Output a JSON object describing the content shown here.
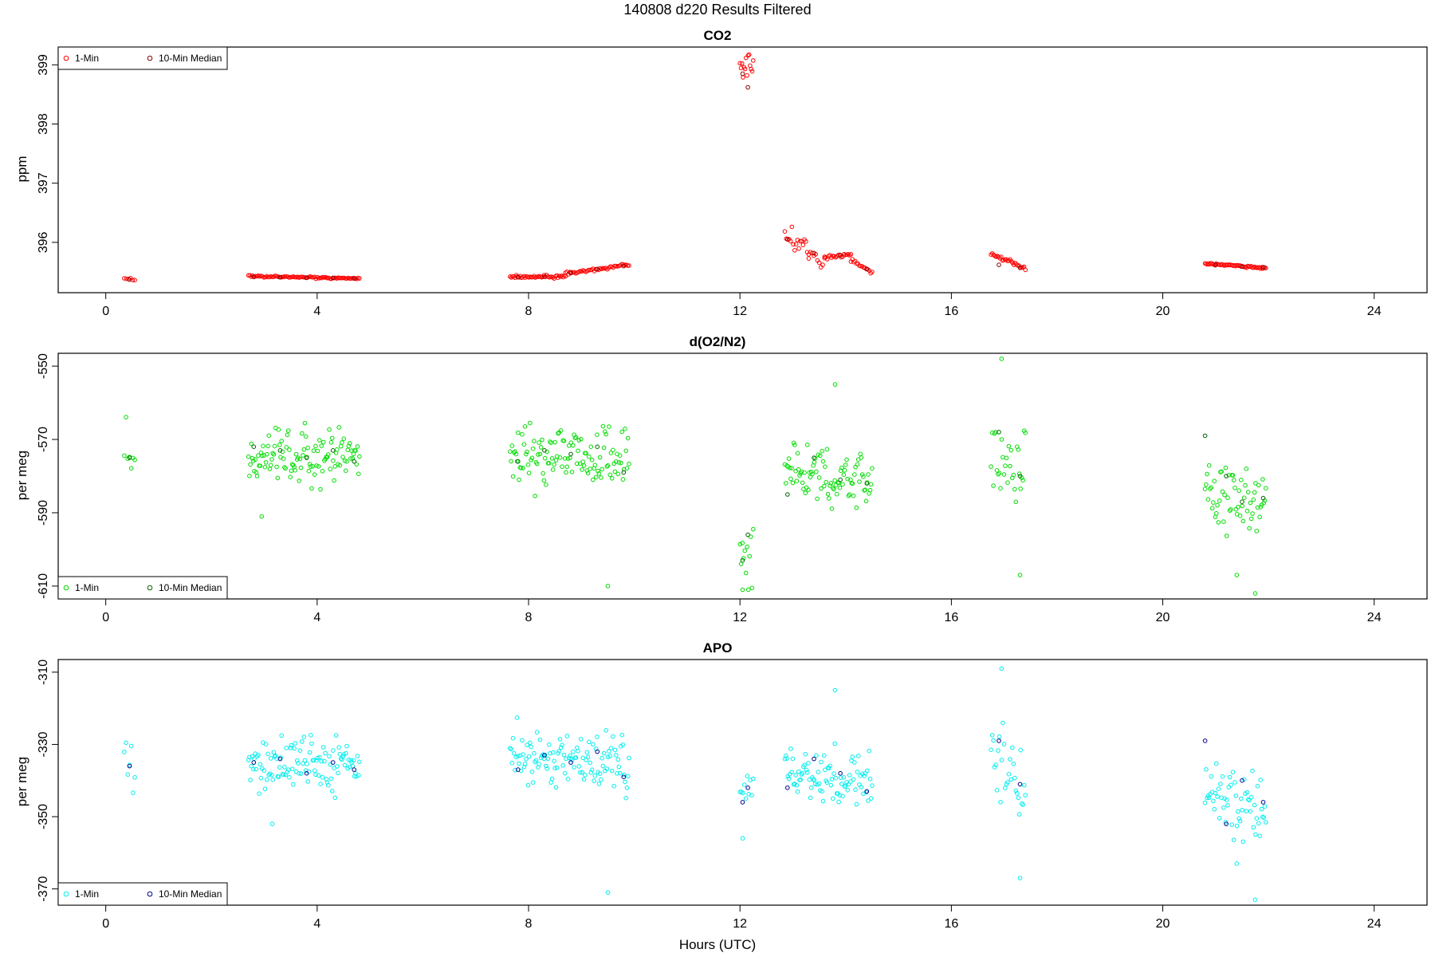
{
  "figure": {
    "title": "140808   d220   Results Filtered",
    "xlabel": "Hours (UTC)"
  },
  "chart_data": [
    {
      "type": "scatter",
      "title": "CO2",
      "xlabel": "",
      "ylabel": "ppm",
      "xlim": [
        -0.9,
        25.0
      ],
      "ylim": [
        395.15,
        399.3
      ],
      "xticks": [
        0,
        4,
        8,
        12,
        16,
        20,
        24
      ],
      "yticks": [
        396,
        397,
        398,
        399
      ],
      "legend_position": "top-left",
      "series": [
        {
          "name": "1-Min",
          "color": "#ff0000",
          "segments": [
            {
              "t0": 0.35,
              "t1": 0.55,
              "y0": 395.39,
              "y1": 395.36,
              "n": 6,
              "jitter": 0.03
            },
            {
              "t0": 2.7,
              "t1": 4.8,
              "y0": 395.43,
              "y1": 395.39,
              "n": 80,
              "jitter": 0.015
            },
            {
              "t0": 7.65,
              "t1": 8.7,
              "y0": 395.42,
              "y1": 395.42,
              "n": 45,
              "jitter": 0.025
            },
            {
              "t0": 8.7,
              "t1": 9.9,
              "y0": 395.47,
              "y1": 395.62,
              "n": 45,
              "jitter": 0.025
            },
            {
              "t0": 12.0,
              "t1": 12.25,
              "y0": 398.8,
              "y1": 399.0,
              "n": 14,
              "jitter": 0.2
            },
            {
              "t0": 12.85,
              "t1": 13.3,
              "y0": 396.1,
              "y1": 395.9,
              "n": 18,
              "jitter": 0.18
            },
            {
              "t0": 13.3,
              "t1": 13.6,
              "y0": 395.8,
              "y1": 395.65,
              "n": 10,
              "jitter": 0.1
            },
            {
              "t0": 13.6,
              "t1": 14.1,
              "y0": 395.75,
              "y1": 395.8,
              "n": 20,
              "jitter": 0.04
            },
            {
              "t0": 14.1,
              "t1": 14.5,
              "y0": 395.7,
              "y1": 395.5,
              "n": 16,
              "jitter": 0.03
            },
            {
              "t0": 16.75,
              "t1": 17.4,
              "y0": 395.8,
              "y1": 395.56,
              "n": 28,
              "jitter": 0.03
            },
            {
              "t0": 20.8,
              "t1": 21.95,
              "y0": 395.64,
              "y1": 395.57,
              "n": 55,
              "jitter": 0.015
            }
          ]
        },
        {
          "name": "10-Min Median",
          "color": "#8b0000",
          "points": [
            [
              0.45,
              395.37
            ],
            [
              2.8,
              395.42
            ],
            [
              3.3,
              395.41
            ],
            [
              3.8,
              395.4
            ],
            [
              4.3,
              395.4
            ],
            [
              4.7,
              395.39
            ],
            [
              7.8,
              395.41
            ],
            [
              8.3,
              395.42
            ],
            [
              8.8,
              395.48
            ],
            [
              9.3,
              395.55
            ],
            [
              9.8,
              395.6
            ],
            [
              12.05,
              398.85
            ],
            [
              12.15,
              398.62
            ],
            [
              12.9,
              396.05
            ],
            [
              13.4,
              395.82
            ],
            [
              13.9,
              395.78
            ],
            [
              14.4,
              395.55
            ],
            [
              16.9,
              395.62
            ],
            [
              17.3,
              395.57
            ],
            [
              21.0,
              395.62
            ],
            [
              21.5,
              395.59
            ],
            [
              21.9,
              395.58
            ]
          ]
        }
      ]
    },
    {
      "type": "scatter",
      "title": "d(O2/N2)",
      "xlabel": "",
      "ylabel": "per meg",
      "xlim": [
        -0.9,
        25.0
      ],
      "ylim": [
        -613.5,
        -546.5
      ],
      "xticks": [
        0,
        4,
        8,
        12,
        16,
        20,
        24
      ],
      "yticks": [
        -550,
        -570,
        -590,
        -610
      ],
      "legend_position": "bottom-left",
      "series": [
        {
          "name": "1-Min",
          "color": "#00dd00",
          "segments": [
            {
              "t0": 0.35,
              "t1": 0.55,
              "y0": -573,
              "y1": -575,
              "n": 7,
              "jitter": 9
            },
            {
              "t0": 2.7,
              "t1": 4.8,
              "y0": -574,
              "y1": -575,
              "n": 115,
              "jitter": 7
            },
            {
              "t0": 7.65,
              "t1": 9.9,
              "y0": -574,
              "y1": -575,
              "n": 120,
              "jitter": 8
            },
            {
              "t0": 12.0,
              "t1": 12.25,
              "y0": -598,
              "y1": -602,
              "n": 12,
              "jitter": 9
            },
            {
              "t0": 12.85,
              "t1": 14.5,
              "y0": -578,
              "y1": -580,
              "n": 90,
              "jitter": 7
            },
            {
              "t0": 16.75,
              "t1": 17.4,
              "y0": -576,
              "y1": -578,
              "n": 30,
              "jitter": 10
            },
            {
              "t0": 20.8,
              "t1": 21.95,
              "y0": -584,
              "y1": -588,
              "n": 60,
              "jitter": 10
            }
          ],
          "outliers": [
            [
              9.5,
              -610
            ],
            [
              13.8,
              -555
            ],
            [
              16.95,
              -548
            ],
            [
              17.3,
              -607
            ],
            [
              21.75,
              -612
            ],
            [
              12.05,
              -611
            ],
            [
              2.95,
              -591
            ],
            [
              21.4,
              -607
            ]
          ]
        },
        {
          "name": "10-Min Median",
          "color": "#006400",
          "points": [
            [
              0.45,
              -575
            ],
            [
              2.8,
              -572
            ],
            [
              3.3,
              -573
            ],
            [
              3.8,
              -575
            ],
            [
              4.3,
              -573
            ],
            [
              4.7,
              -576
            ],
            [
              7.8,
              -576
            ],
            [
              8.3,
              -573
            ],
            [
              8.8,
              -574
            ],
            [
              9.3,
              -572
            ],
            [
              9.8,
              -579
            ],
            [
              12.05,
              -603
            ],
            [
              12.15,
              -596
            ],
            [
              12.9,
              -585
            ],
            [
              13.4,
              -575
            ],
            [
              13.9,
              -581
            ],
            [
              14.4,
              -582
            ],
            [
              16.9,
              -568
            ],
            [
              17.3,
              -580
            ],
            [
              20.8,
              -569
            ],
            [
              21.2,
              -580
            ],
            [
              21.5,
              -587
            ],
            [
              21.9,
              -586
            ]
          ]
        }
      ]
    },
    {
      "type": "scatter",
      "title": "APO",
      "xlabel": "Hours (UTC)",
      "ylabel": "per meg",
      "xlim": [
        -0.9,
        25.0
      ],
      "ylim": [
        -374.5,
        -306.5
      ],
      "xticks": [
        0,
        4,
        8,
        12,
        16,
        20,
        24
      ],
      "yticks": [
        -310,
        -330,
        -350,
        -370
      ],
      "legend_position": "bottom-left",
      "series": [
        {
          "name": "1-Min",
          "color": "#00eeee",
          "segments": [
            {
              "t0": 0.35,
              "t1": 0.55,
              "y0": -335,
              "y1": -337,
              "n": 7,
              "jitter": 9
            },
            {
              "t0": 2.7,
              "t1": 4.8,
              "y0": -335,
              "y1": -336,
              "n": 115,
              "jitter": 7
            },
            {
              "t0": 7.65,
              "t1": 9.9,
              "y0": -334,
              "y1": -336,
              "n": 120,
              "jitter": 8
            },
            {
              "t0": 12.0,
              "t1": 12.25,
              "y0": -343,
              "y1": -344,
              "n": 10,
              "jitter": 7
            },
            {
              "t0": 12.85,
              "t1": 14.5,
              "y0": -337,
              "y1": -340,
              "n": 90,
              "jitter": 7
            },
            {
              "t0": 16.75,
              "t1": 17.4,
              "y0": -334,
              "y1": -338,
              "n": 30,
              "jitter": 10
            },
            {
              "t0": 20.8,
              "t1": 21.95,
              "y0": -343,
              "y1": -347,
              "n": 60,
              "jitter": 10
            }
          ],
          "outliers": [
            [
              9.5,
              -371
            ],
            [
              13.8,
              -315
            ],
            [
              16.95,
              -309
            ],
            [
              17.3,
              -367
            ],
            [
              21.75,
              -373
            ],
            [
              12.05,
              -356
            ],
            [
              3.15,
              -352
            ],
            [
              21.4,
              -363
            ]
          ]
        },
        {
          "name": "10-Min Median",
          "color": "#00008b",
          "points": [
            [
              0.45,
              -336
            ],
            [
              2.8,
              -335
            ],
            [
              3.3,
              -334
            ],
            [
              3.8,
              -338
            ],
            [
              4.3,
              -335
            ],
            [
              4.7,
              -337
            ],
            [
              7.8,
              -337
            ],
            [
              8.3,
              -333
            ],
            [
              8.8,
              -335
            ],
            [
              9.3,
              -332
            ],
            [
              9.8,
              -339
            ],
            [
              12.05,
              -346
            ],
            [
              12.15,
              -342
            ],
            [
              12.9,
              -342
            ],
            [
              13.4,
              -334
            ],
            [
              13.9,
              -338
            ],
            [
              14.4,
              -343
            ],
            [
              16.9,
              -329
            ],
            [
              17.3,
              -341
            ],
            [
              20.8,
              -329
            ],
            [
              21.2,
              -352
            ],
            [
              21.5,
              -340
            ],
            [
              21.9,
              -346
            ]
          ]
        }
      ]
    }
  ]
}
